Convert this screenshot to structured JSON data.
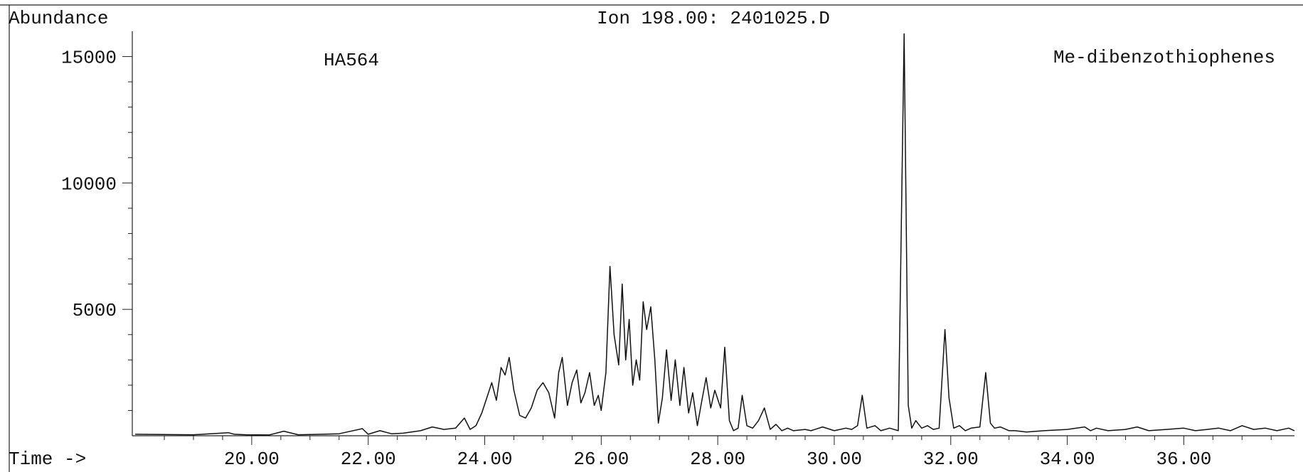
{
  "chart_data": {
    "type": "line",
    "title": "Ion 198.00: 2401025.D",
    "ylabel": "Abundance",
    "xlabel": "Time ->",
    "annotations": {
      "sample": "HA564",
      "compound": "Me-dibenzothiophenes"
    },
    "xlim": [
      17.95,
      37.9
    ],
    "ylim": [
      0,
      16000
    ],
    "xticks": [
      20,
      22,
      24,
      26,
      28,
      30,
      32,
      34,
      36
    ],
    "xtick_labels": [
      "20.00",
      "22.00",
      "24.00",
      "26.00",
      "28.00",
      "30.00",
      "32.00",
      "34.00",
      "36.00"
    ],
    "yticks": [
      5000,
      10000,
      15000
    ],
    "ytick_labels": [
      "5000",
      "10000",
      "15000"
    ],
    "grid": false,
    "series": [
      {
        "x": [
          18.0,
          19.0,
          19.6,
          19.7,
          19.9,
          20.3,
          20.55,
          20.8,
          21.2,
          21.5,
          21.9,
          22.0,
          22.2,
          22.4,
          22.6,
          22.9,
          23.1,
          23.3,
          23.5,
          23.65,
          23.75,
          23.85,
          23.95,
          24.05,
          24.12,
          24.2,
          24.28,
          24.35,
          24.42,
          24.5,
          24.6,
          24.7,
          24.8,
          24.9,
          25.0,
          25.1,
          25.2,
          25.27,
          25.33,
          25.42,
          25.5,
          25.58,
          25.65,
          25.72,
          25.8,
          25.88,
          25.95,
          26.0,
          26.08,
          26.15,
          26.22,
          26.3,
          26.36,
          26.42,
          26.48,
          26.54,
          26.6,
          26.66,
          26.72,
          26.78,
          26.85,
          26.92,
          26.98,
          27.05,
          27.12,
          27.2,
          27.27,
          27.35,
          27.42,
          27.5,
          27.57,
          27.65,
          27.72,
          27.8,
          27.88,
          27.95,
          28.05,
          28.12,
          28.2,
          28.27,
          28.35,
          28.42,
          28.5,
          28.6,
          28.7,
          28.8,
          28.9,
          29.0,
          29.1,
          29.2,
          29.3,
          29.5,
          29.6,
          29.8,
          30.0,
          30.2,
          30.3,
          30.4,
          30.48,
          30.56,
          30.7,
          30.8,
          30.95,
          31.1,
          31.2,
          31.27,
          31.33,
          31.4,
          31.5,
          31.6,
          31.7,
          31.8,
          31.9,
          31.97,
          32.05,
          32.15,
          32.25,
          32.35,
          32.5,
          32.6,
          32.68,
          32.75,
          32.85,
          33.0,
          33.1,
          33.3,
          33.6,
          34.0,
          34.3,
          34.4,
          34.5,
          34.7,
          35.0,
          35.2,
          35.4,
          35.7,
          36.0,
          36.2,
          36.4,
          36.6,
          36.8,
          37.0,
          37.2,
          37.4,
          37.6,
          37.8,
          37.9
        ],
        "y": [
          60,
          40,
          120,
          60,
          40,
          30,
          180,
          40,
          60,
          80,
          280,
          60,
          200,
          80,
          100,
          200,
          350,
          250,
          300,
          700,
          250,
          400,
          900,
          1600,
          2100,
          1400,
          2700,
          2400,
          3100,
          1800,
          800,
          700,
          1100,
          1800,
          2100,
          1700,
          700,
          2500,
          3100,
          1200,
          2100,
          2600,
          1300,
          1700,
          2500,
          1200,
          1600,
          1000,
          2500,
          6700,
          4000,
          2800,
          6000,
          3000,
          4600,
          2000,
          3000,
          2200,
          5300,
          4200,
          5100,
          3000,
          500,
          1500,
          3400,
          1400,
          3000,
          1200,
          2700,
          900,
          1700,
          400,
          1300,
          2300,
          1100,
          1800,
          1100,
          3500,
          600,
          200,
          300,
          1600,
          400,
          300,
          600,
          1100,
          250,
          450,
          200,
          300,
          200,
          250,
          200,
          350,
          200,
          300,
          250,
          400,
          1600,
          300,
          400,
          200,
          300,
          200,
          15900,
          1200,
          300,
          600,
          300,
          400,
          250,
          300,
          4200,
          1500,
          300,
          400,
          200,
          300,
          350,
          2500,
          500,
          300,
          350,
          200,
          200,
          150,
          200,
          250,
          350,
          200,
          300,
          200,
          250,
          350,
          200,
          250,
          300,
          200,
          250,
          300,
          200,
          400,
          250,
          300,
          200,
          300,
          200
        ]
      }
    ]
  }
}
